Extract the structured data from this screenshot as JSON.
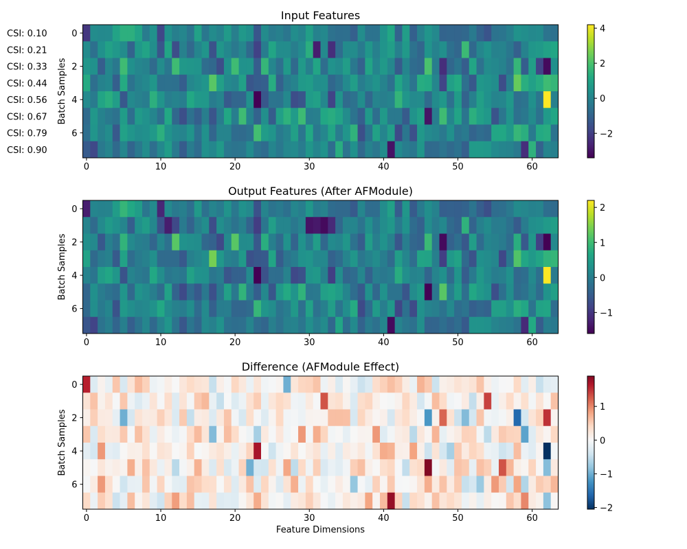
{
  "chart_data": [
    {
      "type": "heatmap",
      "title": "Input Features",
      "ylabel": "Batch Samples",
      "xlabel": "",
      "cmap": "viridis",
      "rows": 8,
      "cols": 64,
      "x_ticks": [
        0,
        10,
        20,
        30,
        40,
        50,
        60
      ],
      "y_ticks": [
        0,
        2,
        4,
        6
      ],
      "clim": [
        -3.4,
        4.2
      ],
      "colorbar_ticks": [
        -2,
        0,
        2,
        4
      ],
      "row_annotations": [
        "CSI: 0.10",
        "CSI: 0.21",
        "CSI: 0.33",
        "CSI: 0.44",
        "CSI: 0.56",
        "CSI: 0.67",
        "CSI: 0.79",
        "CSI: 0.90"
      ],
      "highlights": [
        [
          0,
          0,
          -2.2
        ],
        [
          0,
          5,
          1.4
        ],
        [
          0,
          6,
          1.4
        ],
        [
          0,
          10,
          -1.8
        ],
        [
          1,
          12,
          -1.6
        ],
        [
          1,
          17,
          -1.5
        ],
        [
          1,
          31,
          -2.8
        ],
        [
          2,
          5,
          1.8
        ],
        [
          2,
          12,
          1.8
        ],
        [
          2,
          20,
          1.8
        ],
        [
          2,
          24,
          1.6
        ],
        [
          2,
          46,
          2.0
        ],
        [
          2,
          48,
          -2.4
        ],
        [
          2,
          58,
          1.6
        ],
        [
          2,
          62,
          -3.2
        ],
        [
          3,
          17,
          2.2
        ],
        [
          3,
          58,
          2.4
        ],
        [
          3,
          63,
          1.6
        ],
        [
          4,
          9,
          1.4
        ],
        [
          4,
          23,
          -3.4
        ],
        [
          4,
          62,
          4.2
        ],
        [
          5,
          21,
          1.8
        ],
        [
          5,
          46,
          -3.0
        ],
        [
          5,
          48,
          1.8
        ],
        [
          6,
          10,
          1.4
        ],
        [
          6,
          36,
          1.5
        ],
        [
          7,
          41,
          -3.0
        ],
        [
          7,
          59,
          -2.4
        ]
      ]
    },
    {
      "type": "heatmap",
      "title": "Output Features (After AFModule)",
      "ylabel": "Batch Samples",
      "xlabel": "",
      "cmap": "viridis",
      "rows": 8,
      "cols": 64,
      "x_ticks": [
        0,
        10,
        20,
        30,
        40,
        50,
        60
      ],
      "y_ticks": [
        0,
        2,
        4,
        6
      ],
      "clim": [
        -1.6,
        2.2
      ],
      "colorbar_ticks": [
        -1,
        0,
        1,
        2
      ],
      "highlights": [
        [
          0,
          0,
          -1.3
        ],
        [
          0,
          5,
          0.9
        ],
        [
          0,
          10,
          -1.2
        ],
        [
          1,
          11,
          -1.3
        ],
        [
          1,
          30,
          -1.4
        ],
        [
          1,
          32,
          -1.5
        ],
        [
          2,
          12,
          1.2
        ],
        [
          2,
          20,
          1.2
        ],
        [
          2,
          48,
          -1.5
        ],
        [
          2,
          62,
          -1.6
        ],
        [
          3,
          17,
          1.4
        ],
        [
          3,
          63,
          0.9
        ],
        [
          4,
          23,
          -1.6
        ],
        [
          4,
          62,
          2.2
        ],
        [
          5,
          46,
          -1.6
        ],
        [
          5,
          48,
          1.2
        ],
        [
          7,
          41,
          -1.5
        ]
      ]
    },
    {
      "type": "heatmap",
      "title": "Difference (AFModule Effect)",
      "ylabel": "Batch Samples",
      "xlabel": "Feature Dimensions",
      "cmap": "RdBu_r",
      "rows": 8,
      "cols": 64,
      "x_ticks": [
        0,
        10,
        20,
        30,
        40,
        50,
        60
      ],
      "y_ticks": [
        0,
        2,
        4,
        6
      ],
      "clim": [
        -2.05,
        1.9
      ],
      "colorbar_ticks": [
        -2,
        -1,
        0,
        1
      ],
      "highlights": [
        [
          0,
          0,
          1.6
        ],
        [
          0,
          27,
          -1.0
        ],
        [
          1,
          32,
          1.3
        ],
        [
          1,
          54,
          1.4
        ],
        [
          2,
          5,
          -1.0
        ],
        [
          2,
          46,
          -1.2
        ],
        [
          2,
          48,
          1.2
        ],
        [
          2,
          58,
          -1.6
        ],
        [
          2,
          62,
          1.5
        ],
        [
          3,
          17,
          -0.9
        ],
        [
          3,
          59,
          -1.1
        ],
        [
          4,
          23,
          1.7
        ],
        [
          4,
          62,
          -2.05
        ],
        [
          5,
          22,
          -1.0
        ],
        [
          5,
          46,
          1.9
        ],
        [
          5,
          56,
          1.3
        ],
        [
          6,
          36,
          -0.8
        ],
        [
          7,
          41,
          1.8
        ],
        [
          7,
          59,
          1.0
        ]
      ]
    }
  ]
}
